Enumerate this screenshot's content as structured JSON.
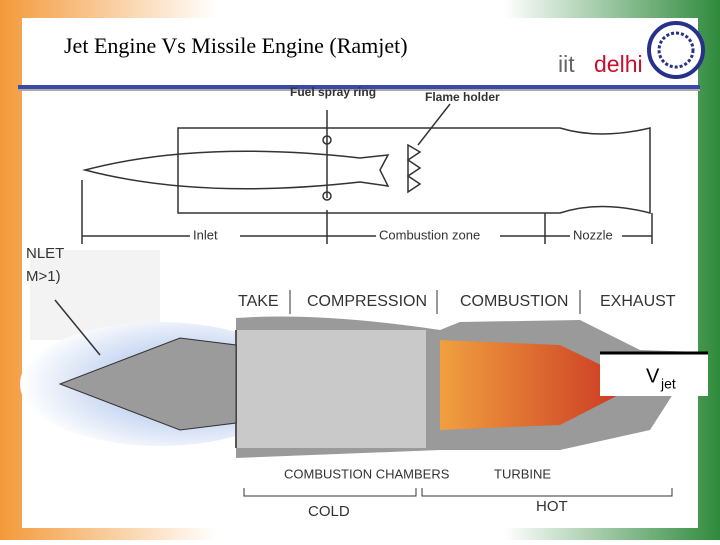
{
  "header": {
    "title": "Jet Engine Vs Missile Engine (Ramjet)",
    "logo": {
      "part1": "iit",
      "part2": "delhi"
    }
  },
  "ramjet": {
    "labels": {
      "fuel_spray_ring": "Fuel spray ring",
      "flame_holder": "Flame holder",
      "inlet": "Inlet",
      "combustion_zone": "Combustion zone",
      "nozzle": "Nozzle"
    }
  },
  "turbojet": {
    "inlet_note": [
      "NLET",
      "M>1)"
    ],
    "stages": [
      "TAKE",
      "COMPRESSION",
      "COMBUSTION",
      "EXHAUST"
    ],
    "parts": {
      "combustion_chambers": "COMBUSTION CHAMBERS",
      "turbine": "TURBINE"
    },
    "zones": {
      "cold": "COLD",
      "hot": "HOT"
    },
    "velocity": {
      "symbol": "V",
      "subscript": "jet"
    }
  }
}
